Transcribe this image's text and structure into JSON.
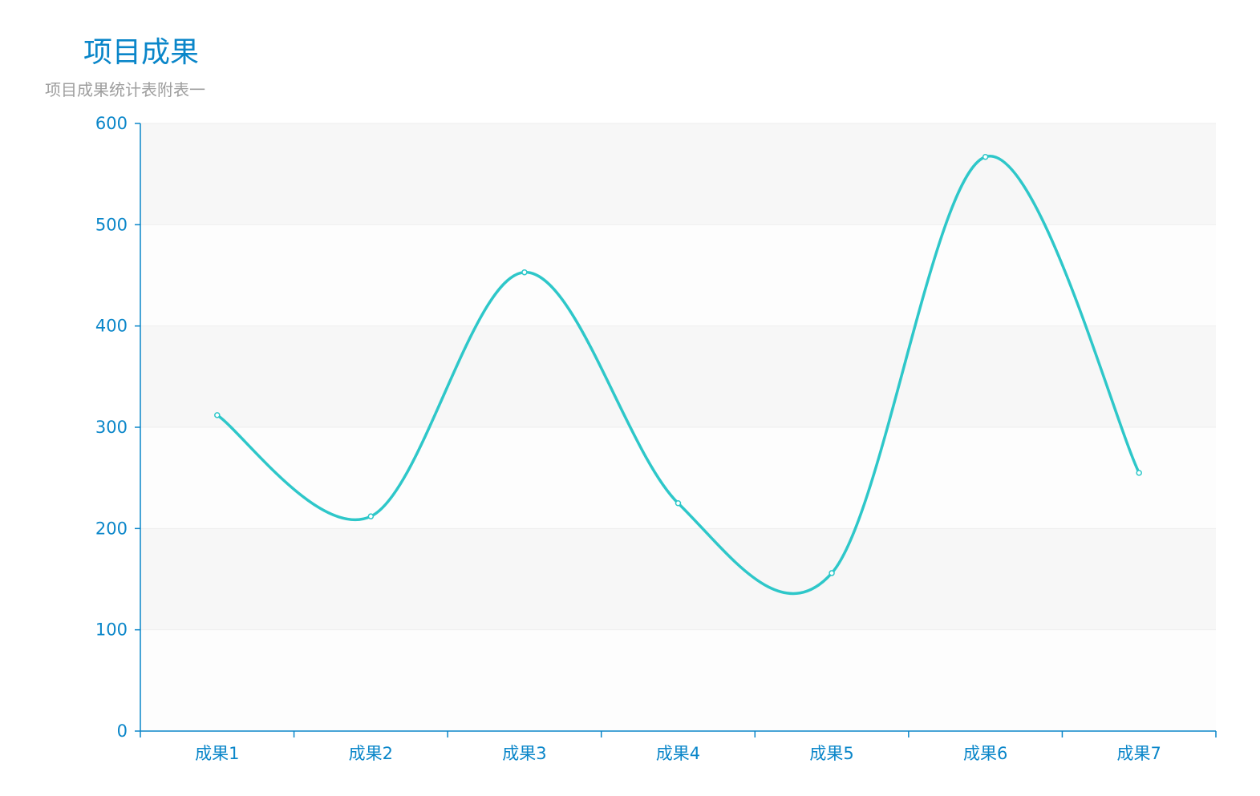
{
  "title": "项目成果",
  "subtitle": "项目成果统计表附表一",
  "colors": {
    "title": "#0a86c9",
    "subtitle": "#9e9e9e",
    "axis": "#0a86c9",
    "line": "#2ec7c9",
    "band_dark": "#f7f7f7",
    "band_light": "#fdfdfd",
    "grid": "#eeeeee"
  },
  "chart_data": {
    "type": "line",
    "smooth": true,
    "title": "项目成果",
    "subtitle": "项目成果统计表附表一",
    "categories": [
      "成果1",
      "成果2",
      "成果3",
      "成果4",
      "成果5",
      "成果6",
      "成果7"
    ],
    "series": [
      {
        "values": [
          312,
          212,
          453,
          225,
          156,
          567,
          255
        ]
      }
    ],
    "ylim": [
      0,
      600
    ],
    "yticks": [
      0,
      100,
      200,
      300,
      400,
      500,
      600
    ],
    "grid": true,
    "legend": "none"
  }
}
